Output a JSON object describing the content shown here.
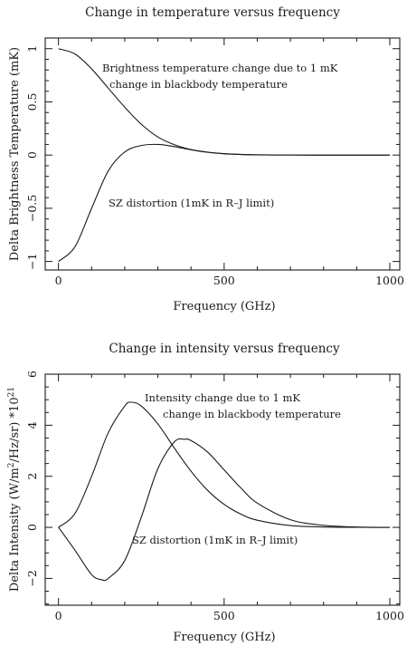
{
  "chart_data": [
    {
      "type": "line",
      "title": "Change in temperature versus frequency",
      "xlabel": "Frequency (GHz)",
      "ylabel": "Delta Brightness Temperature (mK)",
      "xlim": [
        -40,
        1030
      ],
      "ylim": [
        -1.08,
        1.1
      ],
      "xticks": {
        "major": [
          0,
          500,
          1000
        ],
        "minor_step": 100
      },
      "yticks": {
        "major": [
          -1,
          -0.5,
          0,
          0.5,
          1
        ],
        "labels": [
          "−1",
          "−0.5",
          "0",
          "0.5",
          "1"
        ],
        "minor_step": 0.1
      },
      "grid": false,
      "series": [
        {
          "id": "blackbody",
          "annotation": [
            "Brightness temperature change due to 1 mK",
            "change in blackbody temperature"
          ],
          "x": [
            0,
            50,
            100,
            150,
            200,
            250,
            300,
            350,
            400,
            450,
            500,
            550,
            600,
            650,
            700,
            800,
            900,
            1000
          ],
          "y": [
            1.0,
            0.95,
            0.81,
            0.63,
            0.45,
            0.29,
            0.17,
            0.097,
            0.052,
            0.026,
            0.012,
            0.0055,
            0.0024,
            0.001,
            0.0004,
            0.0,
            0.0,
            0.0
          ]
        },
        {
          "id": "sz",
          "annotation": [
            "SZ distortion (1mK in R–J limit)"
          ],
          "x": [
            0,
            50,
            100,
            150,
            200,
            250,
            300,
            350,
            400,
            450,
            500,
            550,
            600,
            650,
            700,
            800,
            900,
            1000
          ],
          "y": [
            -1.0,
            -0.86,
            -0.5,
            -0.15,
            0.03,
            0.09,
            0.1,
            0.08,
            0.05,
            0.028,
            0.014,
            0.006,
            0.0025,
            0.001,
            0.0004,
            0.0,
            0.0,
            0.0
          ]
        }
      ]
    },
    {
      "type": "line",
      "title": "Change in intensity versus frequency",
      "xlabel": "Frequency (GHz)",
      "ylabel": "Delta Intensity (W/m²/Hz/sr) *10²¹",
      "ylabel_parts": [
        "Delta Intensity (W/m",
        "2",
        "/Hz/sr) *10",
        "21"
      ],
      "xlim": [
        -40,
        1030
      ],
      "ylim": [
        -3.05,
        6
      ],
      "xticks": {
        "major": [
          0,
          500,
          1000
        ],
        "minor_step": 100
      },
      "yticks": {
        "major": [
          -2,
          0,
          2,
          4,
          6
        ],
        "labels": [
          "−2",
          "0",
          "2",
          "4",
          "6"
        ],
        "minor_step": 0.5
      },
      "grid": false,
      "series": [
        {
          "id": "blackbody",
          "annotation": [
            "Intensity change due to 1 mK",
            "change in blackbody temperature"
          ],
          "x": [
            0,
            50,
            100,
            150,
            200,
            220,
            250,
            300,
            350,
            400,
            450,
            500,
            550,
            600,
            700,
            800,
            900,
            1000
          ],
          "y": [
            0.0,
            0.55,
            2.0,
            3.7,
            4.75,
            4.9,
            4.75,
            4.05,
            3.1,
            2.2,
            1.45,
            0.9,
            0.52,
            0.28,
            0.07,
            0.015,
            0.003,
            0.0
          ]
        },
        {
          "id": "sz",
          "annotation": [
            "SZ distortion (1mK in R–J limit)"
          ],
          "x": [
            0,
            50,
            100,
            130,
            150,
            200,
            250,
            300,
            350,
            380,
            400,
            450,
            500,
            550,
            600,
            700,
            800,
            900,
            1000
          ],
          "y": [
            0.0,
            -0.9,
            -1.85,
            -2.05,
            -2.0,
            -1.3,
            0.4,
            2.3,
            3.35,
            3.45,
            3.4,
            2.95,
            2.25,
            1.55,
            0.95,
            0.3,
            0.08,
            0.015,
            0.0
          ]
        }
      ]
    }
  ]
}
